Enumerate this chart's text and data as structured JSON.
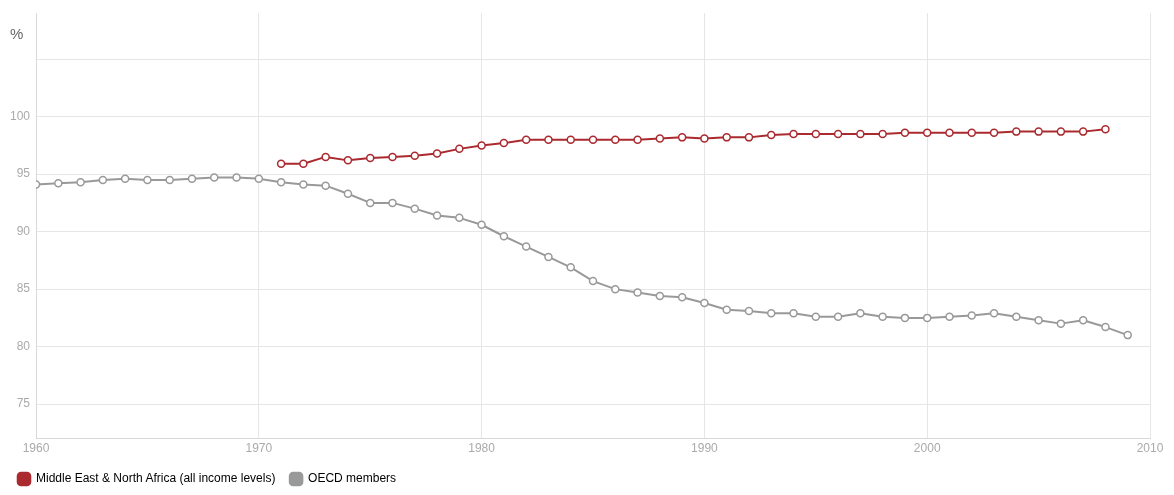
{
  "chart_data": {
    "type": "line",
    "ylabel": "%",
    "x": [
      1960,
      1961,
      1962,
      1963,
      1964,
      1965,
      1966,
      1967,
      1968,
      1969,
      1970,
      1971,
      1972,
      1973,
      1974,
      1975,
      1976,
      1977,
      1978,
      1979,
      1980,
      1981,
      1982,
      1983,
      1984,
      1985,
      1986,
      1987,
      1988,
      1989,
      1990,
      1991,
      1992,
      1993,
      1994,
      1995,
      1996,
      1997,
      1998,
      1999,
      2000,
      2001,
      2002,
      2003,
      2004,
      2005,
      2006,
      2007,
      2008,
      2009
    ],
    "series": [
      {
        "name": "Middle East & North Africa (all income levels)",
        "color": "#ab2a2f",
        "values": [
          null,
          null,
          null,
          null,
          null,
          null,
          null,
          null,
          null,
          null,
          null,
          95.9,
          95.9,
          96.5,
          96.2,
          96.4,
          96.5,
          96.6,
          96.8,
          97.2,
          97.5,
          97.7,
          98.0,
          98.0,
          98.0,
          98.0,
          98.0,
          98.0,
          98.1,
          98.2,
          98.1,
          98.2,
          98.2,
          98.4,
          98.5,
          98.5,
          98.5,
          98.5,
          98.5,
          98.6,
          98.6,
          98.6,
          98.6,
          98.6,
          98.7,
          98.7,
          98.7,
          98.7,
          98.9,
          null
        ]
      },
      {
        "name": "OECD members",
        "color": "#999999",
        "values": [
          94.1,
          94.2,
          94.3,
          94.5,
          94.6,
          94.5,
          94.5,
          94.6,
          94.7,
          94.7,
          94.6,
          94.3,
          94.1,
          94.0,
          93.3,
          92.5,
          92.5,
          92.0,
          91.4,
          91.2,
          90.6,
          89.6,
          88.7,
          87.8,
          86.9,
          85.7,
          85.0,
          84.7,
          84.4,
          84.3,
          83.8,
          83.2,
          83.1,
          82.9,
          82.9,
          82.6,
          82.6,
          82.9,
          82.6,
          82.5,
          82.5,
          82.6,
          82.7,
          82.9,
          82.6,
          82.3,
          82.0,
          82.3,
          81.7,
          81.0
        ]
      }
    ],
    "xlim": [
      1960,
      2010
    ],
    "xticks": [
      1960,
      1970,
      1980,
      1990,
      2000,
      2010
    ],
    "ylim": [
      72,
      109
    ],
    "yticks": [
      75,
      80,
      85,
      90,
      95,
      100,
      {
        "value": 105,
        "label": null
      }
    ],
    "grid": true,
    "legend": "bottom left",
    "marker": "circle",
    "line_style": "solid"
  }
}
